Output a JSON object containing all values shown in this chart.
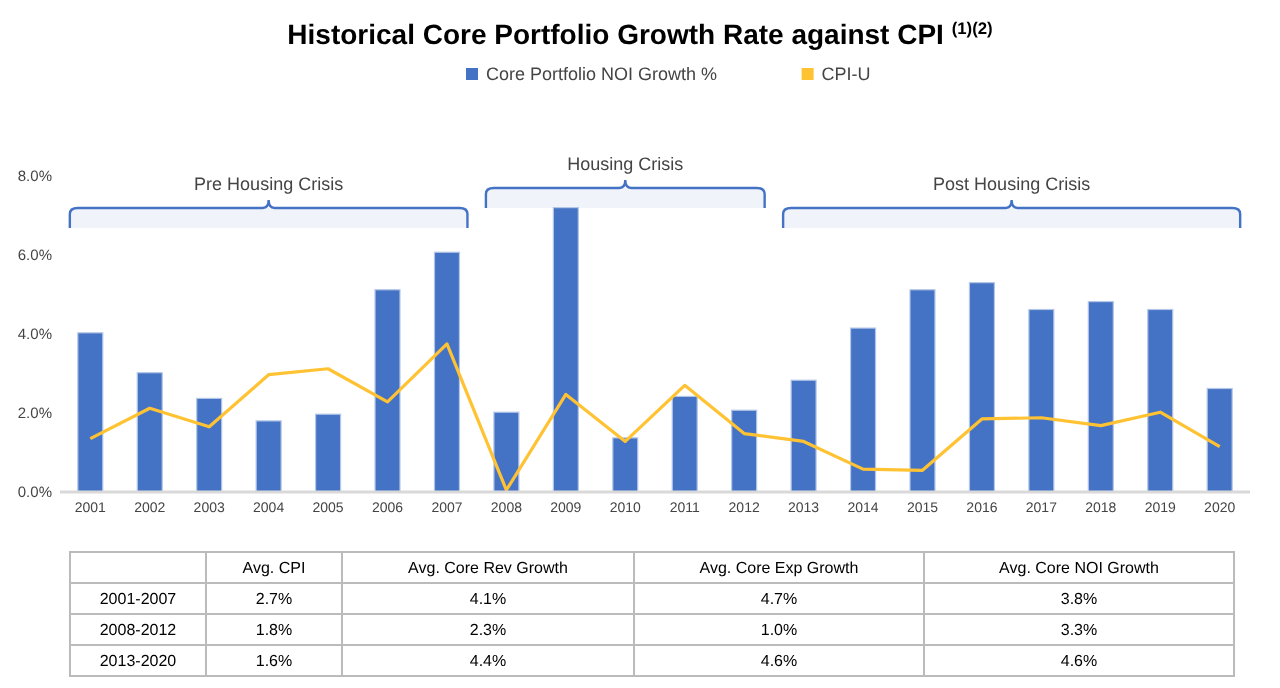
{
  "chart_data": [
    {
      "type": "bar",
      "title": "Historical Core Portfolio Growth Rate against CPI $^{(1)(2)}$",
      "categories": [
        "2001",
        "2002",
        "2003",
        "2004",
        "2005",
        "2006",
        "2007",
        "2008",
        "2009",
        "2010",
        "2011",
        "2012",
        "2013",
        "2014",
        "2015",
        "2016",
        "2017",
        "2018",
        "2019",
        "2020"
      ],
      "series": [
        {
          "name": "Core Portfolio NOI Growth %",
          "color": "#4472c4",
          "values": [
            4.03,
            3.02,
            2.37,
            1.8,
            1.97,
            5.12,
            6.07,
            2.02,
            7.2,
            1.37,
            2.42,
            2.07,
            2.83,
            4.15,
            5.12,
            5.3,
            4.62,
            4.82,
            4.62,
            2.62
          ]
        },
        {
          "name": "CPI-U",
          "type": "line",
          "color": "#ffc233",
          "values": [
            1.35,
            2.12,
            1.65,
            2.97,
            3.12,
            2.28,
            3.75,
            0.05,
            2.47,
            1.28,
            2.7,
            1.48,
            1.28,
            0.58,
            0.55,
            1.85,
            1.88,
            1.68,
            2.02,
            1.15
          ]
        }
      ],
      "ylim": [
        0,
        8
      ],
      "yticks": [
        {
          "value": 0,
          "label": "0.0%"
        },
        {
          "value": 2,
          "label": "2.0%"
        },
        {
          "value": 4,
          "label": "4.0%"
        },
        {
          "value": 6,
          "label": "6.0%"
        },
        {
          "value": 8,
          "label": "8.0%"
        }
      ],
      "bands": [
        {
          "axis": "x",
          "from": "2001",
          "to": "2007",
          "label": "Pre Housing Crisis",
          "color": "#4472c4"
        },
        {
          "axis": "x",
          "from": "2008",
          "to": "2012",
          "label": "Housing Crisis",
          "color": "#4472c4"
        },
        {
          "axis": "x",
          "from": "2013",
          "to": "2020",
          "label": "Post Housing Crisis",
          "color": "#4472c4"
        }
      ],
      "grid": false,
      "legend": "top"
    },
    {
      "type": "other",
      "categories": [
        "Avg. CPI",
        "Avg. Core Rev Growth",
        "Avg. Core Exp Growth",
        "Avg. Core NOI Growth"
      ],
      "y_categories": [
        "2001-2007",
        "2008-2012",
        "2013-2020"
      ],
      "cell_labels": [
        [
          "2.7%",
          "4.1%",
          "4.7%",
          "3.8%"
        ],
        [
          "1.8%",
          "2.3%",
          "1.0%",
          "3.3%"
        ],
        [
          "1.6%",
          "4.4%",
          "4.6%",
          "4.6%"
        ]
      ]
    }
  ]
}
